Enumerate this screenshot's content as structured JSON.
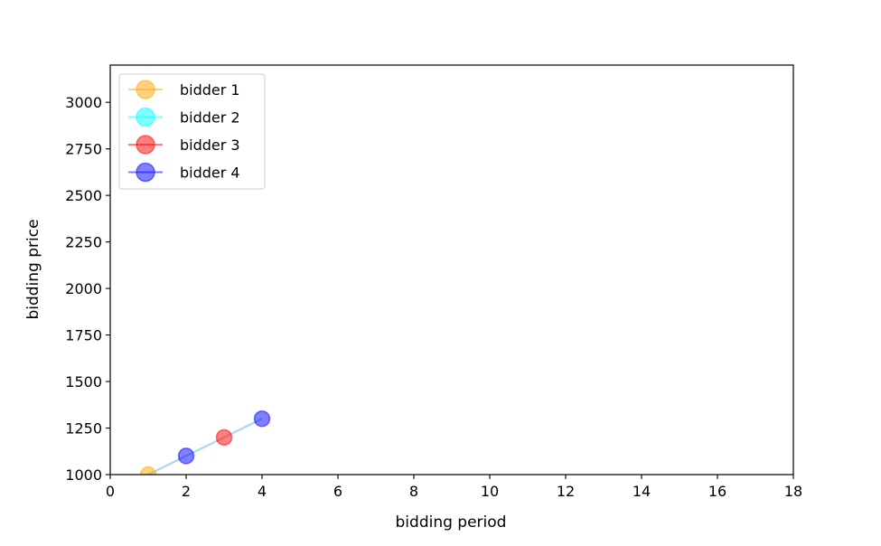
{
  "chart_data": {
    "type": "line",
    "title": "",
    "xlabel": "bidding period",
    "ylabel": "bidding price",
    "xlim": [
      0,
      18
    ],
    "ylim": [
      1000,
      3200
    ],
    "xticks": [
      0,
      2,
      4,
      6,
      8,
      10,
      12,
      14,
      16,
      18
    ],
    "yticks": [
      1000,
      1250,
      1500,
      1750,
      2000,
      2250,
      2500,
      2750,
      3000
    ],
    "grid": false,
    "legend_placement": "top-left",
    "connecting_line_color": "#add8e6",
    "points": [
      {
        "x": 1,
        "y": 1000,
        "bidder": "bidder 1"
      },
      {
        "x": 2,
        "y": 1100,
        "bidder": "bidder 4"
      },
      {
        "x": 3,
        "y": 1200,
        "bidder": "bidder 3"
      },
      {
        "x": 4,
        "y": 1300,
        "bidder": "bidder 4"
      }
    ],
    "series": [
      {
        "name": "bidder 1",
        "color": "#ffa500"
      },
      {
        "name": "bidder 2",
        "color": "#00ffff"
      },
      {
        "name": "bidder 3",
        "color": "#ff0000"
      },
      {
        "name": "bidder 4",
        "color": "#0000ff"
      }
    ]
  }
}
